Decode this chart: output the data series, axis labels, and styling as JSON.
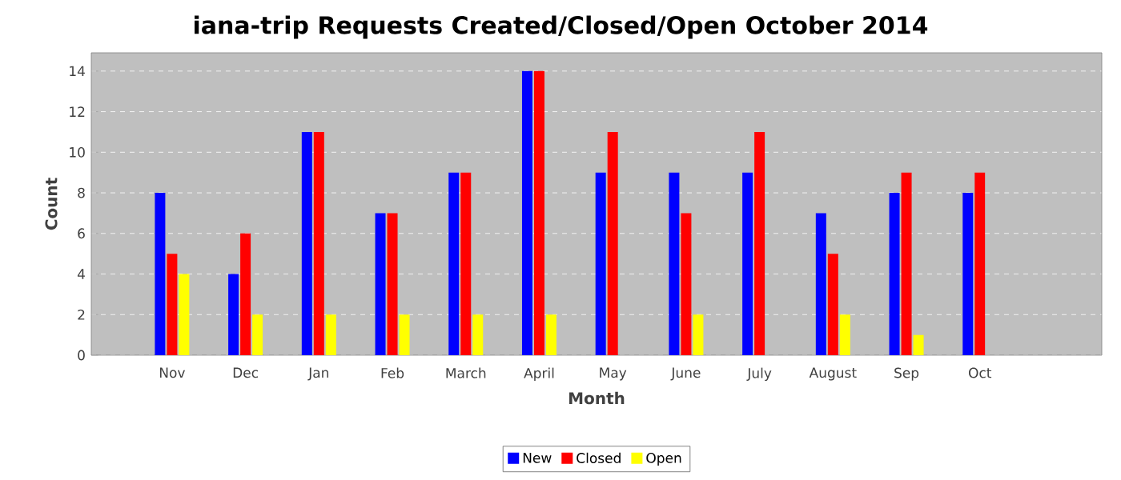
{
  "chart_data": {
    "type": "bar",
    "title": "iana-trip Requests Created/Closed/Open October 2014",
    "xlabel": "Month",
    "ylabel": "Count",
    "categories": [
      "Nov",
      "Dec",
      "Jan",
      "Feb",
      "March",
      "April",
      "May",
      "June",
      "July",
      "August",
      "Sep",
      "Oct"
    ],
    "series": [
      {
        "name": "New",
        "color": "#0000ff",
        "values": [
          8,
          4,
          11,
          7,
          9,
          14,
          9,
          9,
          9,
          7,
          8,
          8
        ]
      },
      {
        "name": "Closed",
        "color": "#ff0000",
        "values": [
          5,
          6,
          11,
          7,
          9,
          14,
          11,
          7,
          11,
          5,
          9,
          9
        ]
      },
      {
        "name": "Open",
        "color": "#ffff00",
        "values": [
          4,
          2,
          2,
          2,
          2,
          2,
          0,
          2,
          0,
          2,
          1,
          0
        ]
      }
    ],
    "ylim": [
      0,
      14.9
    ],
    "yticks": [
      0,
      2,
      4,
      6,
      8,
      10,
      12,
      14
    ],
    "grid": "y",
    "legend": "bottom"
  }
}
